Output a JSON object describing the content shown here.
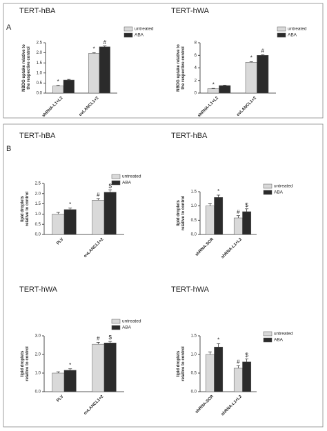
{
  "panels": [
    "A",
    "B"
  ],
  "chart_data": [
    {
      "type": "bar",
      "title": "TERT-hBA",
      "ylabel": [
        "NBDG uptake relative to",
        "the respective control"
      ],
      "categories": [
        "shRNA-L1+L2",
        "ovLANCL1+2"
      ],
      "series": [
        {
          "name": "untreated",
          "color": "#d9d9d9",
          "values": [
            0.35,
            1.97
          ],
          "errors": [
            0.03,
            0.04
          ],
          "annotations": [
            "*",
            "*"
          ]
        },
        {
          "name": "ABA",
          "color": "#2b2b2b",
          "values": [
            0.65,
            2.3
          ],
          "errors": [
            0.03,
            0.04
          ],
          "annotations": [
            null,
            "#"
          ]
        }
      ],
      "ylim": [
        0,
        2.5
      ],
      "yticks": [
        {
          "value": 0,
          "label": "0.0"
        },
        {
          "value": 0.5,
          "label": "0.5"
        },
        {
          "value": 1,
          "label": "1.0"
        },
        {
          "value": 1.5,
          "label": "1.5"
        },
        {
          "value": 2,
          "label": "2.0"
        },
        {
          "value": 2.5,
          "label": "2.5"
        }
      ]
    },
    {
      "type": "bar",
      "title": "TERT-hWA",
      "ylabel": [
        "NBDG uptake relative to",
        "the respective control"
      ],
      "categories": [
        "shRNA-L1+L2",
        "ovLANCL1+2"
      ],
      "series": [
        {
          "name": "untreated",
          "color": "#d9d9d9",
          "values": [
            0.7,
            4.9
          ],
          "errors": [
            0.05,
            0.08
          ],
          "annotations": [
            "*",
            "*"
          ]
        },
        {
          "name": "ABA",
          "color": "#2b2b2b",
          "values": [
            1.2,
            6.0
          ],
          "errors": [
            0.06,
            0.08
          ],
          "annotations": [
            null,
            "#"
          ]
        }
      ],
      "ylim": [
        0,
        8
      ],
      "yticks": [
        0,
        2,
        4,
        6,
        8
      ]
    },
    {
      "type": "bar",
      "title": "TERT-hBA",
      "ylabel": [
        "lipid droplets",
        "relative to control"
      ],
      "categories": [
        "PLV",
        "ovLANCL1+2"
      ],
      "series": [
        {
          "name": "untreated",
          "color": "#d9d9d9",
          "values": [
            1.0,
            1.68
          ],
          "errors": [
            0.08,
            0.08
          ],
          "annotations": [
            null,
            "#"
          ]
        },
        {
          "name": "ABA",
          "color": "#2b2b2b",
          "values": [
            1.22,
            2.07
          ],
          "errors": [
            0.07,
            0.12
          ],
          "annotations": [
            "*",
            "$"
          ]
        }
      ],
      "ylim": [
        0,
        2.5
      ],
      "yticks": [
        {
          "value": 0,
          "label": "0.0"
        },
        {
          "value": 0.5,
          "label": "0.5"
        },
        {
          "value": 1,
          "label": "1.0"
        },
        {
          "value": 1.5,
          "label": "1.5"
        },
        {
          "value": 2,
          "label": "2.0"
        },
        {
          "value": 2.5,
          "label": "2.5"
        }
      ]
    },
    {
      "type": "bar",
      "title": "TERT-hBA",
      "ylabel": [
        "lipid droplets",
        "relative to control"
      ],
      "categories": [
        "shRNA-SCR",
        "shRNA-L1+L2"
      ],
      "series": [
        {
          "name": "untreated",
          "color": "#d9d9d9",
          "values": [
            1.0,
            0.58
          ],
          "errors": [
            0.08,
            0.08
          ],
          "annotations": [
            null,
            "#"
          ]
        },
        {
          "name": "ABA",
          "color": "#2b2b2b",
          "values": [
            1.3,
            0.8
          ],
          "errors": [
            0.08,
            0.1
          ],
          "annotations": [
            "*",
            "$"
          ]
        }
      ],
      "ylim": [
        0,
        1.5
      ],
      "yticks": [
        {
          "value": 0,
          "label": "0.0"
        },
        {
          "value": 0.5,
          "label": "0.5"
        },
        {
          "value": 1,
          "label": "1.0"
        },
        {
          "value": 1.5,
          "label": "1.5"
        }
      ]
    },
    {
      "type": "bar",
      "title": "TERT-hWA",
      "ylabel": [
        "lipid droplets",
        "relative to control"
      ],
      "categories": [
        "PLV",
        "ovLANCL1+2"
      ],
      "series": [
        {
          "name": "untreated",
          "color": "#d9d9d9",
          "values": [
            1.0,
            2.55
          ],
          "errors": [
            0.07,
            0.1
          ],
          "annotations": [
            null,
            "#"
          ]
        },
        {
          "name": "ABA",
          "color": "#2b2b2b",
          "values": [
            1.15,
            2.62
          ],
          "errors": [
            0.08,
            0.08
          ],
          "annotations": [
            "*",
            "$"
          ]
        }
      ],
      "ylim": [
        0,
        3
      ],
      "yticks": [
        {
          "value": 0,
          "label": "0.0"
        },
        {
          "value": 1,
          "label": "1.0"
        },
        {
          "value": 2,
          "label": "2.0"
        },
        {
          "value": 3,
          "label": "3.0"
        }
      ]
    },
    {
      "type": "bar",
      "title": "TERT-hWA",
      "ylabel": [
        "lipid droplets",
        "relative to control"
      ],
      "categories": [
        "shRNA-SCR",
        "shRNA-L1+L2"
      ],
      "series": [
        {
          "name": "untreated",
          "color": "#d9d9d9",
          "values": [
            1.0,
            0.63
          ],
          "errors": [
            0.07,
            0.07
          ],
          "annotations": [
            null,
            "#"
          ]
        },
        {
          "name": "ABA",
          "color": "#2b2b2b",
          "values": [
            1.2,
            0.8
          ],
          "errors": [
            0.09,
            0.08
          ],
          "annotations": [
            "*",
            "$"
          ]
        }
      ],
      "ylim": [
        0,
        1.5
      ],
      "yticks": [
        {
          "value": 0,
          "label": "0.0"
        },
        {
          "value": 0.5,
          "label": "0.5"
        },
        {
          "value": 1,
          "label": "1.0"
        },
        {
          "value": 1.5,
          "label": "1.5"
        }
      ]
    }
  ]
}
